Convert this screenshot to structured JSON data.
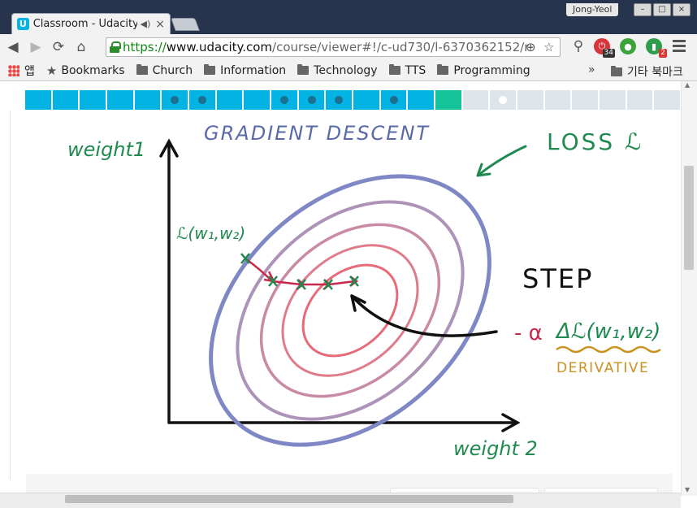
{
  "browser": {
    "tab_title": "Classroom - Udacity",
    "tab_audio_icon": "speaker-icon",
    "user_name": "Jong-Yeol",
    "url_scheme": "https://",
    "url_host": "www.udacity.com",
    "url_path": "/course/viewer#!/c-ud730/l-6370362152/m-",
    "extension_badges": {
      "ext1": "34",
      "ext3": "2"
    }
  },
  "bookmarks": {
    "apps": "앱",
    "items": [
      "Bookmarks",
      "Church",
      "Information",
      "Technology",
      "TTS",
      "Programming"
    ],
    "overflow": "»",
    "other": "기타 북마크"
  },
  "progress": {
    "segments": [
      "done",
      "done",
      "done",
      "done",
      "done",
      "done",
      "done",
      "done",
      "done",
      "done",
      "done",
      "done",
      "done",
      "done",
      "done",
      "current",
      "todo",
      "todo",
      "todo",
      "todo",
      "todo",
      "todo",
      "todo",
      "todo"
    ],
    "dots": [
      5,
      6,
      9,
      10,
      11,
      13
    ],
    "current_dot": 17
  },
  "lecture": {
    "title": "GRADIENT DESCENT",
    "y_axis_label": "weight1",
    "x_axis_label": "weight 2",
    "loss_label": "LOSS ℒ",
    "point_label": "ℒ(w₁,w₂)",
    "step_label": "STEP",
    "step_formula_alpha": "- α",
    "step_formula_grad": "Δℒ(w₁,w₂)",
    "derivative_label": "DERIVATIVE",
    "colors": {
      "title": "#5a6aa8",
      "green": "#1f8a4f",
      "outer_ring": "#7f87c4",
      "ring2": "#ad93b8",
      "ring3": "#c98aa6",
      "ring4": "#de7c8c",
      "inner_ring": "#e66a78",
      "path": "#c8284a",
      "derivative": "#c8921f"
    }
  }
}
